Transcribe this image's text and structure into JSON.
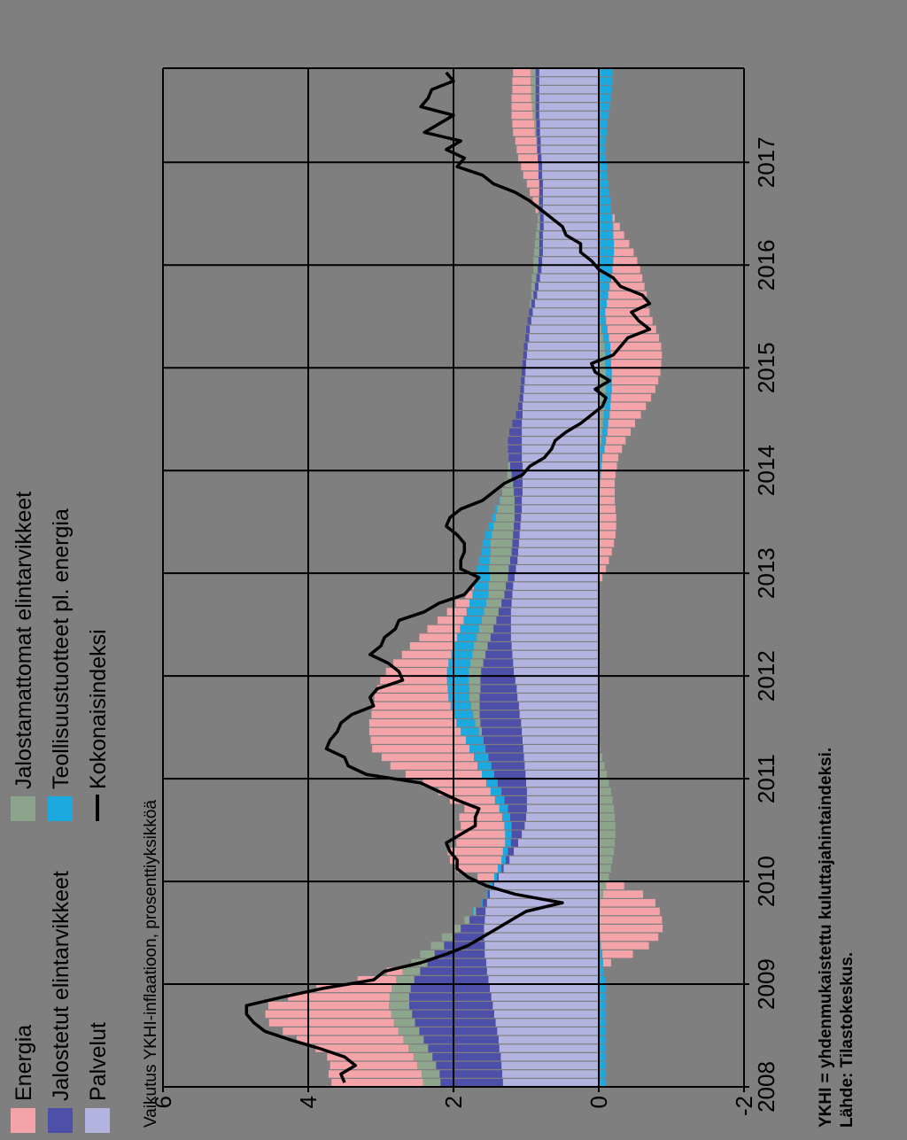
{
  "chart_data": {
    "type": "bar",
    "subtitle": "Vaikutus YKHI-inflaatioon, prosenttiyksikköä",
    "note": "YKHI = yhdenmukaistettu kuluttajahintaindeksi.",
    "source": "Lähde: Tilastokeskus.",
    "ylim": [
      -2,
      6
    ],
    "y_ticks": [
      "-2",
      "0",
      "2",
      "4",
      "6"
    ],
    "x_ticks": [
      "2008",
      "2009",
      "2010",
      "2011",
      "2012",
      "2013",
      "2014",
      "2015",
      "2016",
      "2017"
    ],
    "grid": true,
    "legend_position": "top",
    "colors": {
      "energia": "#f4a3a8",
      "jalostetut": "#4d4fa8",
      "palvelut": "#b3b3e0",
      "jalostamattomat": "#8ca58c",
      "teollisuus": "#1ba9e0",
      "kokonais": "#000000"
    },
    "legend": [
      {
        "key": "energia",
        "label": "Energia",
        "kind": "box"
      },
      {
        "key": "jalostetut",
        "label": "Jalostetut elintarvikkeet",
        "kind": "box"
      },
      {
        "key": "palvelut",
        "label": "Palvelut",
        "kind": "box"
      },
      {
        "key": "jalostamattomat",
        "label": "Jalostamattomat elintarvikkeet",
        "kind": "box"
      },
      {
        "key": "teollisuus",
        "label": "Teollisuustuotteet pl. energia",
        "kind": "box"
      },
      {
        "key": "kokonais",
        "label": "Kokonaisindeksi",
        "kind": "line"
      }
    ],
    "x_start_year": 2008,
    "months": 119,
    "series": [
      {
        "name": "Palvelut",
        "key": "palvelut",
        "values": [
          1.32,
          1.33,
          1.34,
          1.35,
          1.37,
          1.38,
          1.4,
          1.42,
          1.44,
          1.46,
          1.48,
          1.5,
          1.52,
          1.54,
          1.55,
          1.57,
          1.57,
          1.58,
          1.58,
          1.57,
          1.56,
          1.54,
          1.5,
          1.44,
          1.38,
          1.31,
          1.23,
          1.17,
          1.11,
          1.06,
          1.02,
          1.0,
          0.99,
          0.99,
          0.99,
          1.0,
          1.01,
          1.02,
          1.03,
          1.04,
          1.05,
          1.06,
          1.07,
          1.09,
          1.1,
          1.12,
          1.13,
          1.15,
          1.17,
          1.18,
          1.19,
          1.2,
          1.21,
          1.21,
          1.21,
          1.21,
          1.2,
          1.19,
          1.18,
          1.16,
          1.14,
          1.12,
          1.11,
          1.1,
          1.09,
          1.08,
          1.07,
          1.06,
          1.06,
          1.05,
          1.05,
          1.05,
          1.05,
          1.06,
          1.06,
          1.06,
          1.06,
          1.06,
          1.05,
          1.05,
          1.04,
          1.03,
          1.02,
          1.01,
          1.0,
          0.99,
          0.98,
          0.96,
          0.95,
          0.93,
          0.91,
          0.88,
          0.85,
          0.83,
          0.81,
          0.79,
          0.78,
          0.77,
          0.77,
          0.77,
          0.76,
          0.76,
          0.77,
          0.77,
          0.77,
          0.77,
          0.78,
          0.78,
          0.79,
          0.8,
          0.8,
          0.81,
          0.81,
          0.82,
          0.82,
          0.82,
          0.82,
          0.82,
          0.82
        ]
      },
      {
        "name": "Jalostetut elintarvikkeet",
        "key": "jalostetut",
        "values": [
          0.86,
          0.86,
          0.9,
          0.94,
          0.98,
          1.03,
          1.07,
          1.11,
          1.13,
          1.15,
          1.13,
          1.09,
          1.02,
          0.92,
          0.81,
          0.69,
          0.56,
          0.43,
          0.32,
          0.21,
          0.13,
          0.06,
          0.03,
          0.02,
          0.02,
          0.03,
          0.05,
          0.08,
          0.1,
          0.14,
          0.18,
          0.22,
          0.26,
          0.31,
          0.35,
          0.39,
          0.43,
          0.46,
          0.49,
          0.52,
          0.54,
          0.55,
          0.56,
          0.55,
          0.54,
          0.52,
          0.5,
          0.48,
          0.45,
          0.41,
          0.37,
          0.33,
          0.28,
          0.24,
          0.2,
          0.17,
          0.14,
          0.11,
          0.1,
          0.09,
          0.1,
          0.1,
          0.09,
          0.09,
          0.09,
          0.09,
          0.09,
          0.1,
          0.1,
          0.12,
          0.13,
          0.15,
          0.17,
          0.18,
          0.19,
          0.19,
          0.17,
          0.13,
          0.09,
          0.06,
          0.05,
          0.05,
          0.05,
          0.05,
          0.05,
          0.05,
          0.05,
          0.05,
          0.05,
          0.05,
          0.05,
          0.05,
          0.05,
          0.05,
          0.05,
          0.05,
          0.05,
          0.05,
          0.05,
          0.05,
          0.05,
          0.05,
          0.05,
          0.05,
          0.05,
          0.05,
          0.05,
          0.05,
          0.05,
          0.05,
          0.05,
          0.05,
          0.05,
          0.05,
          0.05,
          0.05,
          0.05,
          0.05,
          0.05
        ]
      },
      {
        "name": "Jalostamattomat elintarvikkeet",
        "key": "jalostamattomat",
        "values": [
          0.24,
          0.25,
          0.26,
          0.26,
          0.27,
          0.28,
          0.29,
          0.29,
          0.29,
          0.28,
          0.27,
          0.26,
          0.25,
          0.24,
          0.22,
          0.2,
          0.18,
          0.15,
          0.11,
          0.07,
          0.03,
          -0.02,
          -0.06,
          -0.1,
          -0.14,
          -0.17,
          -0.19,
          -0.21,
          -0.22,
          -0.23,
          -0.23,
          -0.22,
          -0.21,
          -0.19,
          -0.17,
          -0.14,
          -0.11,
          -0.08,
          -0.05,
          -0.02,
          0.01,
          0.04,
          0.07,
          0.09,
          0.12,
          0.14,
          0.15,
          0.16,
          0.17,
          0.18,
          0.18,
          0.19,
          0.19,
          0.2,
          0.2,
          0.2,
          0.21,
          0.22,
          0.24,
          0.25,
          0.27,
          0.28,
          0.29,
          0.3,
          0.29,
          0.28,
          0.26,
          0.24,
          0.2,
          0.16,
          0.11,
          0.06,
          0.03,
          0.0,
          -0.02,
          -0.04,
          -0.05,
          -0.06,
          -0.07,
          -0.08,
          -0.09,
          -0.1,
          -0.1,
          -0.1,
          -0.09,
          -0.09,
          -0.08,
          -0.06,
          -0.04,
          -0.02,
          0.0,
          0.02,
          0.03,
          0.05,
          0.06,
          0.06,
          0.07,
          0.07,
          0.06,
          0.05,
          0.04,
          0.03,
          0.02,
          0.01,
          0.0,
          -0.01,
          -0.01,
          -0.01,
          -0.01,
          0.0,
          0.01,
          0.02,
          0.03,
          0.04,
          0.05,
          0.06,
          0.06,
          0.07,
          0.07
        ]
      },
      {
        "name": "Teollisuustuotteet pl. energia",
        "key": "teollisuus",
        "values": [
          -0.1,
          -0.1,
          -0.1,
          -0.1,
          -0.1,
          -0.1,
          -0.1,
          -0.1,
          -0.1,
          -0.1,
          -0.1,
          -0.1,
          -0.09,
          -0.07,
          -0.06,
          -0.05,
          -0.03,
          -0.02,
          -0.01,
          0.0,
          0.01,
          0.01,
          0.02,
          0.03,
          0.04,
          0.05,
          0.06,
          0.07,
          0.08,
          0.09,
          0.1,
          0.11,
          0.12,
          0.13,
          0.15,
          0.16,
          0.17,
          0.19,
          0.2,
          0.22,
          0.23,
          0.25,
          0.26,
          0.27,
          0.28,
          0.29,
          0.3,
          0.3,
          0.3,
          0.3,
          0.29,
          0.28,
          0.27,
          0.26,
          0.25,
          0.24,
          0.23,
          0.22,
          0.2,
          0.19,
          0.17,
          0.15,
          0.13,
          0.11,
          0.09,
          0.07,
          0.05,
          0.03,
          0.01,
          -0.01,
          -0.02,
          -0.03,
          -0.04,
          -0.05,
          -0.06,
          -0.06,
          -0.07,
          -0.07,
          -0.08,
          -0.08,
          -0.08,
          -0.08,
          -0.08,
          -0.08,
          -0.08,
          -0.08,
          -0.08,
          -0.08,
          -0.08,
          -0.08,
          -0.09,
          -0.11,
          -0.13,
          -0.15,
          -0.17,
          -0.19,
          -0.2,
          -0.21,
          -0.21,
          -0.2,
          -0.2,
          -0.19,
          -0.17,
          -0.16,
          -0.14,
          -0.12,
          -0.11,
          -0.1,
          -0.09,
          -0.09,
          -0.1,
          -0.11,
          -0.12,
          -0.13,
          -0.15,
          -0.17,
          -0.18,
          -0.19,
          -0.19
        ]
      },
      {
        "name": "Energia",
        "key": "energia",
        "values": [
          1.26,
          1.28,
          1.2,
          1.19,
          1.28,
          1.47,
          1.59,
          1.72,
          1.73,
          1.66,
          1.4,
          1.04,
          0.53,
          0.22,
          -0.11,
          -0.42,
          -0.66,
          -0.8,
          -0.87,
          -0.87,
          -0.84,
          -0.76,
          -0.55,
          -0.25,
          0.23,
          0.56,
          0.71,
          0.76,
          0.67,
          0.68,
          0.6,
          0.59,
          0.48,
          0.62,
          0.72,
          0.87,
          1.05,
          1.2,
          1.27,
          1.34,
          1.31,
          1.26,
          1.2,
          1.13,
          1.08,
          1.02,
          0.97,
          0.92,
          0.84,
          0.76,
          0.68,
          0.6,
          0.52,
          0.45,
          0.36,
          0.27,
          0.19,
          0.1,
          0.02,
          -0.05,
          -0.1,
          -0.14,
          -0.18,
          -0.21,
          -0.23,
          -0.24,
          -0.24,
          -0.23,
          -0.22,
          -0.21,
          -0.2,
          -0.2,
          -0.21,
          -0.22,
          -0.24,
          -0.27,
          -0.32,
          -0.37,
          -0.43,
          -0.49,
          -0.55,
          -0.6,
          -0.64,
          -0.67,
          -0.69,
          -0.7,
          -0.7,
          -0.69,
          -0.67,
          -0.64,
          -0.61,
          -0.57,
          -0.53,
          -0.48,
          -0.43,
          -0.38,
          -0.33,
          -0.27,
          -0.21,
          -0.15,
          -0.09,
          -0.03,
          0.03,
          0.08,
          0.13,
          0.17,
          0.21,
          0.24,
          0.27,
          0.28,
          0.29,
          0.3,
          0.3,
          0.29,
          0.28,
          0.27,
          0.26,
          0.25,
          0.24
        ]
      }
    ],
    "line": {
      "name": "Kokonaisindeksi",
      "key": "kokonais",
      "values": [
        3.5,
        3.55,
        3.35,
        3.5,
        3.85,
        4.25,
        4.6,
        4.75,
        4.85,
        4.85,
        4.35,
        3.8,
        3.1,
        2.95,
        2.45,
        2.1,
        1.8,
        1.6,
        1.4,
        1.2,
        1.0,
        0.5,
        1.15,
        1.55,
        1.8,
        1.95,
        1.95,
        2.05,
        2.1,
        1.9,
        1.7,
        1.7,
        1.65,
        1.95,
        2.2,
        2.45,
        3.2,
        3.45,
        3.5,
        3.75,
        3.7,
        3.6,
        3.55,
        3.4,
        3.1,
        3.15,
        3.05,
        2.7,
        2.75,
        2.9,
        3.15,
        3.0,
        2.95,
        2.8,
        2.75,
        2.4,
        2.2,
        1.85,
        1.75,
        1.65,
        1.9,
        1.9,
        1.85,
        1.85,
        1.95,
        2.1,
        2.05,
        1.9,
        1.6,
        1.45,
        1.3,
        1.05,
        0.95,
        0.75,
        0.65,
        0.6,
        0.45,
        0.25,
        0.1,
        -0.05,
        -0.1,
        0.05,
        -0.15,
        0.05,
        0.1,
        -0.2,
        -0.3,
        -0.4,
        -0.7,
        -0.55,
        -0.45,
        -0.7,
        -0.6,
        -0.3,
        -0.2,
        0.0,
        0.1,
        0.25,
        0.25,
        0.45,
        0.5,
        0.65,
        0.8,
        0.95,
        1.15,
        1.45,
        1.6,
        1.95,
        1.85,
        2.1,
        1.9,
        2.4,
        2.2,
        2.0,
        2.45,
        2.35,
        2.3,
        2.0,
        2.1
      ]
    }
  }
}
